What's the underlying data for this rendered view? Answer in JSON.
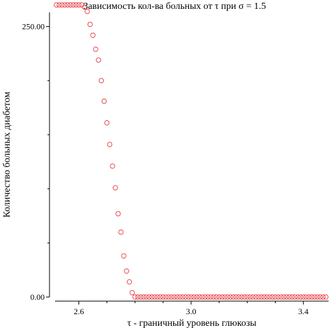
{
  "chart_data": {
    "type": "scatter",
    "title": "Зависимость кол-ва больных от τ при σ = 1.5",
    "xlabel": "τ - граничный уровень глюкозы",
    "ylabel": "Количество больных диабетом",
    "x_ticks": [
      2.6,
      3.0,
      3.4
    ],
    "x_tick_labels": [
      "2.6",
      "3.0",
      "3.4"
    ],
    "y_ticks": [
      0,
      250
    ],
    "y_tick_labels": [
      "0.00",
      "250.00"
    ],
    "xlim": [
      2.515,
      3.49
    ],
    "ylim": [
      0,
      265
    ],
    "marker_color": "#e8383d",
    "series": [
      {
        "x": [
          2.52,
          2.53,
          2.54,
          2.55,
          2.56,
          2.57,
          2.58,
          2.59,
          2.6,
          2.61,
          2.62,
          2.63,
          2.64,
          2.65,
          2.66,
          2.67,
          2.68,
          2.69,
          2.7,
          2.71,
          2.72,
          2.73,
          2.74,
          2.75,
          2.76,
          2.77,
          2.78,
          2.79,
          2.8,
          2.81,
          2.82,
          2.83,
          2.84,
          2.85,
          2.86,
          2.87,
          2.88,
          2.89,
          2.9,
          2.91,
          2.92,
          2.93,
          2.94,
          2.95,
          2.96,
          2.97,
          2.98,
          2.99,
          3.0,
          3.01,
          3.02,
          3.03,
          3.04,
          3.05,
          3.06,
          3.07,
          3.08,
          3.09,
          3.1,
          3.11,
          3.12,
          3.13,
          3.14,
          3.15,
          3.16,
          3.17,
          3.18,
          3.19,
          3.2,
          3.21,
          3.22,
          3.23,
          3.24,
          3.25,
          3.26,
          3.27,
          3.28,
          3.29,
          3.3,
          3.31,
          3.32,
          3.33,
          3.34,
          3.35,
          3.36,
          3.37,
          3.38,
          3.39,
          3.4,
          3.41,
          3.42,
          3.43,
          3.44,
          3.45,
          3.46,
          3.47,
          3.48
        ],
        "y": [
          270,
          270,
          270,
          270,
          270,
          270,
          270,
          270,
          270,
          270,
          268,
          264,
          252,
          242,
          229,
          219,
          200,
          181,
          161,
          141,
          121,
          101,
          77,
          60,
          38,
          24,
          14,
          4,
          0,
          0,
          0,
          0,
          0,
          0,
          0,
          0,
          0,
          0,
          0,
          0,
          0,
          0,
          0,
          0,
          0,
          0,
          0,
          0,
          0,
          0,
          0,
          0,
          0,
          0,
          0,
          0,
          0,
          0,
          0,
          0,
          0,
          0,
          0,
          0,
          0,
          0,
          0,
          0,
          0,
          0,
          0,
          0,
          0,
          0,
          0,
          0,
          0,
          0,
          0,
          0,
          0,
          0,
          0,
          0,
          0,
          0,
          0,
          0,
          0,
          0,
          0,
          0,
          0,
          0,
          0,
          0,
          0
        ]
      }
    ]
  }
}
